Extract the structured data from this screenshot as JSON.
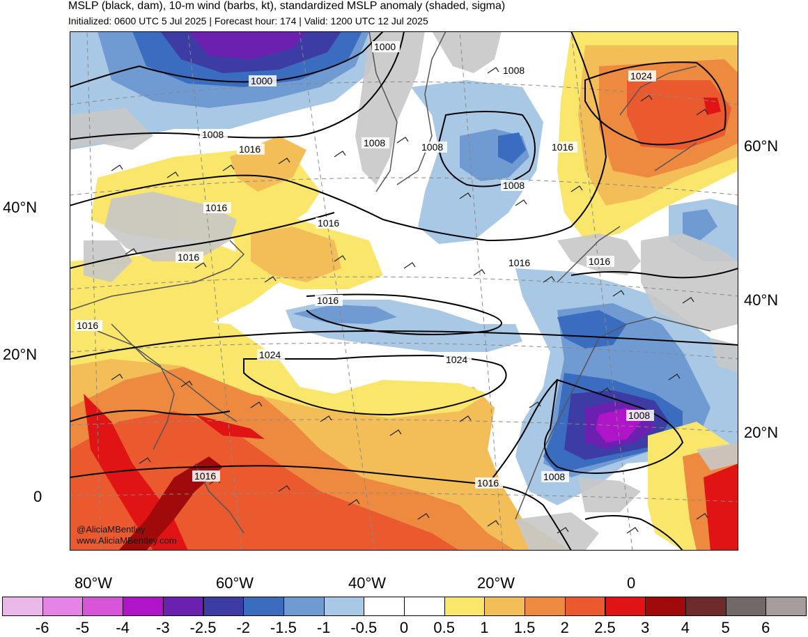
{
  "header": {
    "title": "MSLP (black, dam), 10-m wind (barbs, kt), standardized MSLP anomaly (shaded, sigma)",
    "subtitle": "Initialized: 0600 UTC 5 Jul 2025 | Forecast hour: 174 | Valid: 1200 UTC 12 Jul 2025"
  },
  "credits": {
    "handle": "@AliciaMBentley",
    "site": "www.AliciaMBentley.com"
  },
  "axes": {
    "left_lat": [
      "40°N",
      "20°N",
      "0"
    ],
    "right_lat": [
      "60°N",
      "40°N",
      "20°N"
    ],
    "bottom_lon": [
      "80°W",
      "60°W",
      "40°W",
      "20°W",
      "0"
    ]
  },
  "contour_labels": [
    "1000",
    "1000",
    "1008",
    "1008",
    "1008",
    "1008",
    "1008",
    "1016",
    "1016",
    "1016",
    "1016",
    "1016",
    "1016",
    "1016",
    "1016",
    "1016",
    "1016",
    "1024",
    "1024",
    "1024",
    "1008",
    "1008",
    "1016"
  ],
  "colorbar": {
    "ticks": [
      "-6",
      "-5",
      "-4",
      "-3",
      "-2.5",
      "-2",
      "-1.5",
      "-1",
      "-0.5",
      "0",
      "0.5",
      "1",
      "1.5",
      "2",
      "2.5",
      "3",
      "4",
      "5",
      "6"
    ],
    "colors": [
      "#e9b8e9",
      "#e583e6",
      "#d854d9",
      "#b014c9",
      "#6b20b0",
      "#3c3ca4",
      "#3a6cc0",
      "#6f9ad2",
      "#a8c8e6",
      "#ffffff",
      "#ffffff",
      "#f9e66a",
      "#f3bd58",
      "#ee8a40",
      "#ea5a2e",
      "#e01414",
      "#a00a0a",
      "#6e2b2b",
      "#736868",
      "#a59c9c"
    ]
  },
  "colors": {
    "land_gray": "#c8c8c8",
    "coast": "#555555",
    "contour": "#000000",
    "grid": "#888888"
  }
}
